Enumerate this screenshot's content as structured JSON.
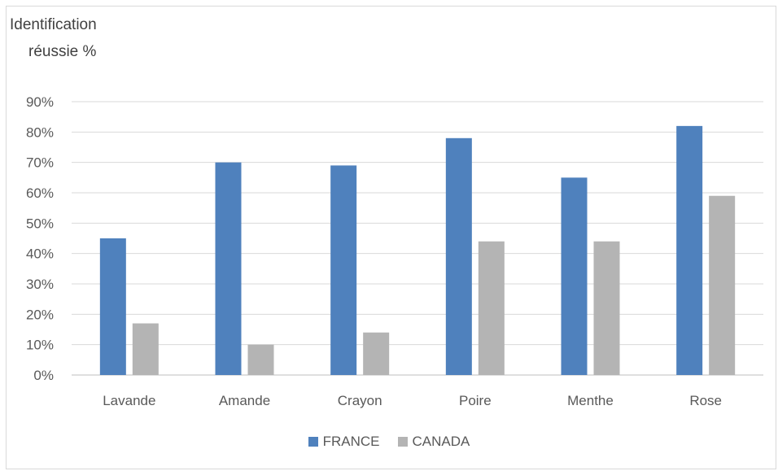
{
  "chart_data": {
    "type": "bar",
    "ylabel_lines": [
      "Identification",
      "réussie %"
    ],
    "categories": [
      "Lavande",
      "Amande",
      "Crayon",
      "Poire",
      "Menthe",
      "Rose"
    ],
    "series": [
      {
        "name": "FRANCE",
        "color": "#4f81bd",
        "values": [
          45,
          70,
          69,
          78,
          65,
          82
        ]
      },
      {
        "name": "CANADA",
        "color": "#b4b4b4",
        "values": [
          17,
          10,
          14,
          44,
          44,
          59
        ]
      }
    ],
    "yticks": [
      "0%",
      "10%",
      "20%",
      "30%",
      "40%",
      "50%",
      "60%",
      "70%",
      "80%",
      "90%"
    ],
    "ylim": [
      0,
      90
    ],
    "grid": true,
    "legend_position": "bottom"
  }
}
